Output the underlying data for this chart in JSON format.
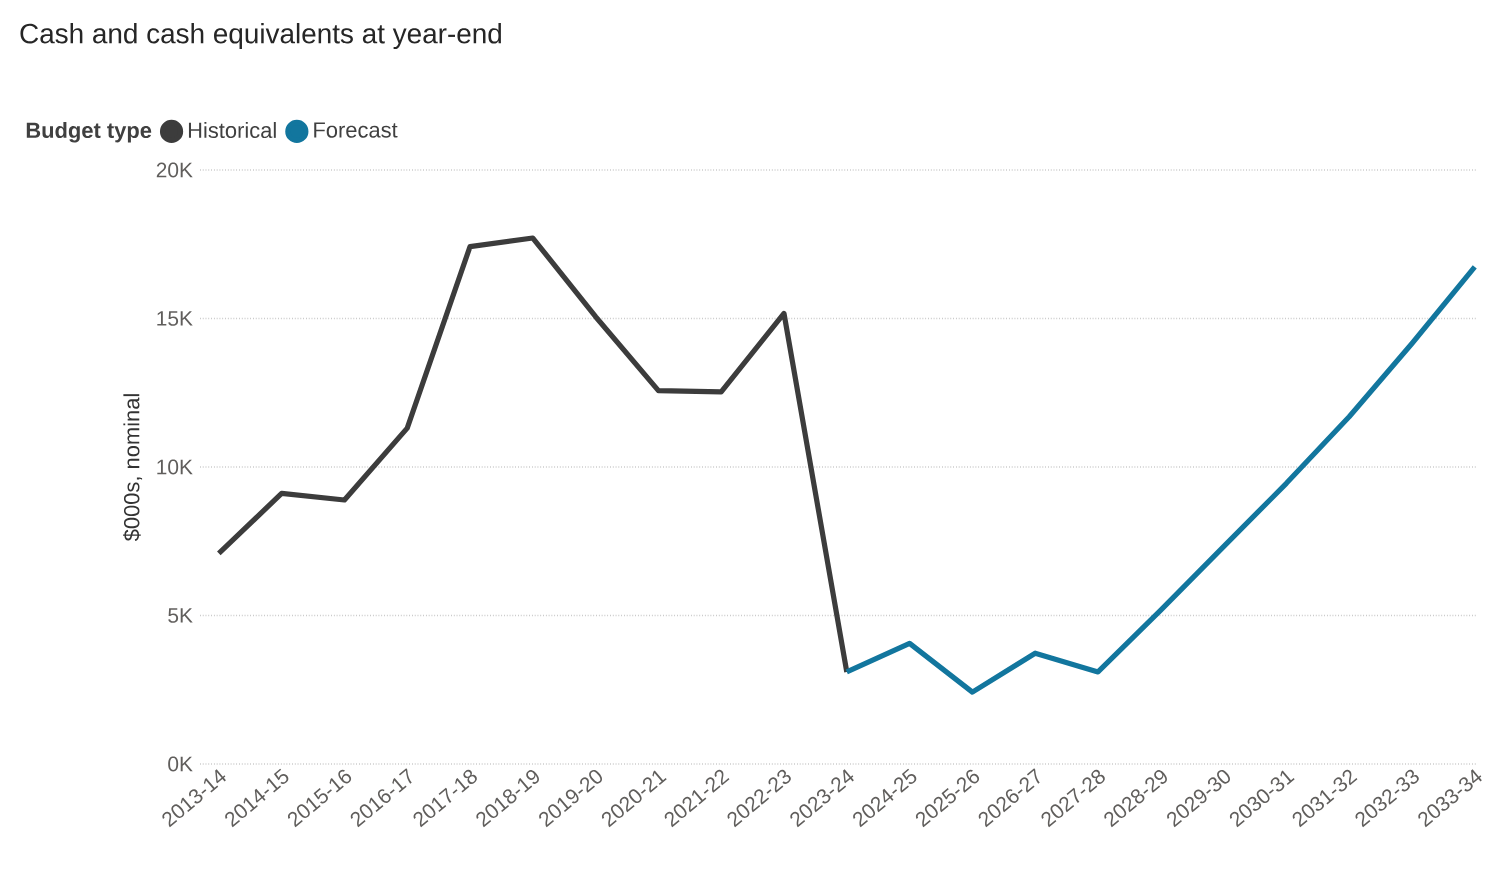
{
  "chart_data": {
    "type": "line",
    "title": "Cash and cash equivalents at year-end",
    "ylabel": "$000s, nominal",
    "legend_title": "Budget type",
    "categories": [
      "2013-14",
      "2014-15",
      "2015-16",
      "2016-17",
      "2017-18",
      "2018-19",
      "2019-20",
      "2020-21",
      "2021-22",
      "2022-23",
      "2023-24",
      "2024-25",
      "2025-26",
      "2026-27",
      "2027-28",
      "2028-29",
      "2029-30",
      "2030-31",
      "2031-32",
      "2032-33",
      "2033-34"
    ],
    "series": [
      {
        "name": "Historical",
        "color": "#3c3c3c",
        "values": [
          7090,
          9110,
          8890,
          11310,
          17420,
          17710,
          15060,
          12570,
          12530,
          15170,
          3100,
          null,
          null,
          null,
          null,
          null,
          null,
          null,
          null,
          null,
          null
        ]
      },
      {
        "name": "Forecast",
        "color": "#12769e",
        "values": [
          null,
          null,
          null,
          null,
          null,
          null,
          null,
          null,
          null,
          null,
          3100,
          4060,
          2420,
          3730,
          3100,
          5180,
          7320,
          9450,
          11690,
          14160,
          16740
        ]
      }
    ],
    "ylim": [
      0,
      20000
    ],
    "yticks": [
      {
        "value": 0,
        "label": "0K"
      },
      {
        "value": 5000,
        "label": "5K"
      },
      {
        "value": 10000,
        "label": "10K"
      },
      {
        "value": 15000,
        "label": "15K"
      },
      {
        "value": 20000,
        "label": "20K"
      }
    ],
    "grid": "y",
    "legend": "top left",
    "marker": "none",
    "line_style": "solid"
  }
}
